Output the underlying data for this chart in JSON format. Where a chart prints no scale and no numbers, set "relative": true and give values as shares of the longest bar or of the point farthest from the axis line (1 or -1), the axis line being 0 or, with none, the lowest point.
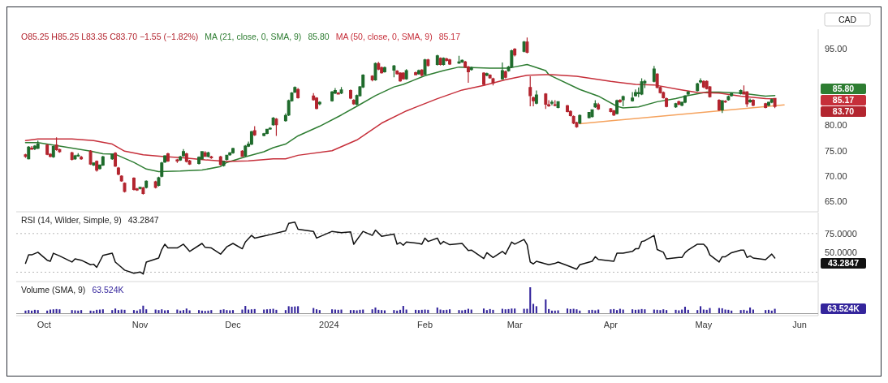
{
  "chart_data": [
    {
      "type": "candlestick",
      "legend": "top left",
      "tick_labels": "y",
      "xlim": [
        "2023-09-22",
        "2024-06-07"
      ],
      "ylim": [
        63.5,
        98.5
      ],
      "yticks": [
        {
          "value": 65,
          "label": "65.00"
        },
        {
          "value": 70,
          "label": "70.00"
        },
        {
          "value": 75,
          "label": "75.00"
        },
        {
          "value": 80,
          "label": "80.00"
        },
        {
          "value": 95,
          "label": "95.00"
        }
      ],
      "annotations": [
        "O85.25 H85.25 L83.35 C83.70 −1.55 (−1.82%)",
        "CAD",
        "85.80",
        "85.17",
        "83.70"
      ],
      "x": [
        "2023-09-25",
        "2023-09-26",
        "2023-09-27",
        "2023-09-28",
        "2023-09-29",
        "2023-10-02",
        "2023-10-03",
        "2023-10-04",
        "2023-10-05",
        "2023-10-06",
        "2023-10-10",
        "2023-10-11",
        "2023-10-12",
        "2023-10-13",
        "2023-10-16",
        "2023-10-17",
        "2023-10-18",
        "2023-10-19",
        "2023-10-20",
        "2023-10-23",
        "2023-10-24",
        "2023-10-25",
        "2023-10-26",
        "2023-10-27",
        "2023-10-30",
        "2023-10-31",
        "2023-11-01",
        "2023-11-02",
        "2023-11-03",
        "2023-11-06",
        "2023-11-07",
        "2023-11-08",
        "2023-11-09",
        "2023-11-10",
        "2023-11-13",
        "2023-11-14",
        "2023-11-15",
        "2023-11-16",
        "2023-11-17",
        "2023-11-20",
        "2023-11-21",
        "2023-11-22",
        "2023-11-23",
        "2023-11-24",
        "2023-11-27",
        "2023-11-28",
        "2023-11-29",
        "2023-11-30",
        "2023-12-01",
        "2023-12-04",
        "2023-12-05",
        "2023-12-06",
        "2023-12-07",
        "2023-12-08",
        "2023-12-11",
        "2023-12-12",
        "2023-12-13",
        "2023-12-14",
        "2023-12-15",
        "2023-12-18",
        "2023-12-19",
        "2023-12-20",
        "2023-12-21",
        "2023-12-22",
        "2023-12-27",
        "2023-12-28",
        "2023-12-29",
        "2024-01-02",
        "2024-01-03",
        "2024-01-04",
        "2024-01-05",
        "2024-01-08",
        "2024-01-09",
        "2024-01-10",
        "2024-01-11",
        "2024-01-12",
        "2024-01-15",
        "2024-01-16",
        "2024-01-17",
        "2024-01-18",
        "2024-01-19",
        "2024-01-22",
        "2024-01-23",
        "2024-01-24",
        "2024-01-25",
        "2024-01-26",
        "2024-01-29",
        "2024-01-30",
        "2024-01-31",
        "2024-02-01",
        "2024-02-02",
        "2024-02-05",
        "2024-02-06",
        "2024-02-07",
        "2024-02-08",
        "2024-02-09",
        "2024-02-12",
        "2024-02-13",
        "2024-02-14",
        "2024-02-15",
        "2024-02-16",
        "2024-02-20",
        "2024-02-21",
        "2024-02-22",
        "2024-02-23",
        "2024-02-26",
        "2024-02-27",
        "2024-02-28",
        "2024-02-29",
        "2024-03-01",
        "2024-03-04",
        "2024-03-05",
        "2024-03-06",
        "2024-03-07",
        "2024-03-08",
        "2024-03-11",
        "2024-03-12",
        "2024-03-13",
        "2024-03-14",
        "2024-03-15",
        "2024-03-18",
        "2024-03-19",
        "2024-03-20",
        "2024-03-21",
        "2024-03-22",
        "2024-03-25",
        "2024-03-26",
        "2024-03-27",
        "2024-03-28",
        "2024-04-01",
        "2024-04-02",
        "2024-04-03",
        "2024-04-04",
        "2024-04-05",
        "2024-04-08",
        "2024-04-09",
        "2024-04-10",
        "2024-04-11",
        "2024-04-12",
        "2024-04-15",
        "2024-04-16",
        "2024-04-17",
        "2024-04-18",
        "2024-04-19",
        "2024-04-22",
        "2024-04-23",
        "2024-04-24",
        "2024-04-25",
        "2024-04-26",
        "2024-04-29",
        "2024-04-30",
        "2024-05-01",
        "2024-05-02",
        "2024-05-03",
        "2024-05-06",
        "2024-05-07",
        "2024-05-08",
        "2024-05-09",
        "2024-05-10",
        "2024-05-13",
        "2024-05-14",
        "2024-05-15",
        "2024-05-16",
        "2024-05-17",
        "2024-05-21",
        "2024-05-22",
        "2024-05-23",
        "2024-05-24"
      ],
      "ohlc": [
        [
          74.2,
          74.4,
          73.6,
          73.9
        ],
        [
          73.4,
          75.9,
          73.3,
          75.7
        ],
        [
          75.5,
          75.9,
          75.2,
          75.3
        ],
        [
          75.4,
          76.1,
          75.1,
          75.9
        ],
        [
          75.5,
          77.0,
          75.3,
          76.3
        ],
        [
          76.1,
          76.3,
          74.1,
          74.3
        ],
        [
          74.3,
          74.5,
          73.7,
          73.9
        ],
        [
          73.8,
          76.0,
          73.6,
          75.8
        ],
        [
          76.1,
          77.6,
          75.0,
          75.2
        ],
        [
          75.2,
          75.4,
          74.6,
          74.8
        ],
        [
          74.6,
          74.8,
          73.1,
          73.3
        ],
        [
          73.4,
          74.2,
          73.2,
          74.0
        ],
        [
          74.1,
          74.5,
          73.8,
          74.1
        ],
        [
          73.7,
          74.0,
          73.2,
          73.4
        ],
        [
          74.9,
          75.1,
          72.2,
          72.4
        ],
        [
          72.2,
          72.7,
          72.0,
          72.6
        ],
        [
          72.9,
          73.1,
          70.9,
          71.2
        ],
        [
          71.5,
          72.3,
          71.3,
          72.2
        ],
        [
          72.2,
          74.0,
          72.0,
          73.8
        ],
        [
          73.4,
          74.4,
          73.2,
          74.3
        ],
        [
          74.5,
          74.7,
          71.8,
          72.0
        ],
        [
          71.6,
          71.8,
          70.2,
          70.4
        ],
        [
          70.0,
          70.2,
          68.9,
          69.1
        ],
        [
          68.6,
          68.8,
          66.8,
          67.0
        ],
        [
          69.6,
          69.8,
          67.2,
          67.4
        ],
        [
          67.5,
          67.7,
          67.1,
          67.3
        ],
        [
          67.6,
          67.9,
          67.4,
          67.8
        ],
        [
          67.7,
          67.9,
          66.4,
          66.6
        ],
        [
          67.8,
          69.2,
          67.6,
          69.0
        ],
        [
          68.9,
          69.1,
          67.6,
          67.8
        ],
        [
          68.2,
          69.9,
          68.0,
          69.7
        ],
        [
          70.0,
          72.8,
          69.8,
          72.6
        ],
        [
          72.8,
          74.1,
          72.6,
          74.0
        ],
        [
          74.4,
          74.6,
          72.8,
          73.0
        ],
        [
          73.2,
          73.4,
          72.6,
          73.0
        ],
        [
          73.2,
          74.0,
          73.0,
          73.8
        ],
        [
          74.0,
          75.3,
          73.8,
          74.8
        ],
        [
          74.4,
          74.6,
          72.7,
          72.9
        ],
        [
          73.0,
          73.2,
          72.2,
          72.4
        ],
        [
          72.5,
          73.9,
          72.3,
          73.7
        ],
        [
          73.4,
          74.9,
          73.2,
          74.8
        ],
        [
          74.6,
          74.9,
          73.8,
          73.9
        ],
        [
          73.9,
          74.8,
          73.7,
          74.6
        ],
        [
          73.8,
          74.0,
          73.4,
          73.6
        ],
        [
          73.8,
          74.0,
          72.1,
          72.3
        ],
        [
          72.1,
          73.0,
          71.9,
          72.9
        ],
        [
          73.3,
          74.2,
          73.1,
          74.1
        ],
        [
          74.2,
          74.7,
          74.0,
          74.6
        ],
        [
          74.6,
          75.6,
          74.4,
          75.4
        ],
        [
          74.9,
          75.1,
          73.8,
          73.9
        ],
        [
          74.0,
          76.1,
          73.8,
          75.9
        ],
        [
          75.9,
          76.8,
          75.7,
          76.3
        ],
        [
          76.3,
          78.9,
          76.1,
          78.7
        ],
        [
          78.9,
          79.8,
          77.9,
          78.1
        ],
        [
          78.0,
          78.5,
          77.8,
          78.3
        ],
        [
          78.4,
          79.3,
          78.2,
          79.2
        ],
        [
          79.3,
          79.6,
          79.1,
          79.4
        ],
        [
          80.1,
          81.6,
          79.9,
          81.4
        ],
        [
          81.2,
          81.4,
          77.9,
          80.1
        ],
        [
          80.9,
          82.3,
          80.7,
          81.9
        ],
        [
          82.0,
          85.0,
          81.8,
          84.8
        ],
        [
          84.8,
          86.5,
          84.6,
          86.3
        ],
        [
          86.5,
          87.6,
          86.3,
          87.4
        ],
        [
          87.0,
          87.3,
          85.2,
          85.4
        ],
        [
          85.7,
          86.3,
          84.8,
          85.0
        ],
        [
          85.3,
          85.5,
          83.1,
          83.3
        ],
        [
          84.2,
          84.7,
          83.9,
          84.5
        ],
        [
          84.8,
          86.7,
          84.6,
          86.5
        ],
        [
          86.3,
          87.3,
          86.1,
          86.8
        ],
        [
          86.3,
          86.5,
          86.0,
          86.1
        ],
        [
          86.3,
          87.5,
          86.1,
          86.9
        ],
        [
          86.8,
          87.0,
          85.1,
          85.3
        ],
        [
          84.9,
          85.1,
          84.0,
          84.2
        ],
        [
          84.1,
          86.0,
          83.9,
          85.8
        ],
        [
          85.8,
          87.7,
          85.6,
          87.5
        ],
        [
          87.5,
          90.0,
          87.3,
          89.8
        ],
        [
          89.6,
          89.8,
          88.6,
          88.9
        ],
        [
          88.9,
          92.3,
          88.7,
          92.1
        ],
        [
          92.1,
          92.4,
          90.8,
          91.0
        ],
        [
          91.3,
          91.5,
          90.1,
          90.3
        ],
        [
          90.5,
          91.5,
          90.3,
          91.3
        ],
        [
          90.8,
          91.8,
          89.4,
          91.6
        ],
        [
          90.6,
          90.8,
          89.9,
          90.1
        ],
        [
          90.2,
          90.4,
          88.5,
          88.7
        ],
        [
          90.2,
          90.4,
          88.9,
          89.1
        ],
        [
          89.1,
          91.0,
          88.9,
          90.7
        ],
        [
          90.3,
          90.5,
          89.8,
          89.9
        ],
        [
          90.1,
          90.9,
          89.9,
          90.7
        ],
        [
          90.8,
          91.0,
          89.6,
          89.8
        ],
        [
          90.0,
          93.0,
          89.8,
          92.8
        ],
        [
          92.8,
          93.0,
          91.5,
          91.7
        ],
        [
          91.9,
          93.8,
          91.7,
          93.6
        ],
        [
          93.1,
          93.3,
          91.7,
          91.9
        ],
        [
          91.9,
          93.3,
          91.7,
          93.1
        ],
        [
          93.0,
          93.2,
          92.5,
          92.7
        ],
        [
          92.8,
          93.0,
          91.8,
          92.0
        ],
        [
          92.2,
          93.6,
          92.0,
          92.4
        ],
        [
          92.4,
          92.9,
          92.2,
          92.7
        ],
        [
          92.4,
          92.6,
          91.2,
          91.4
        ],
        [
          91.4,
          91.6,
          88.3,
          90.5
        ],
        [
          90.9,
          91.5,
          90.7,
          91.3
        ],
        [
          90.2,
          90.4,
          87.8,
          88.0
        ],
        [
          89.8,
          90.3,
          89.6,
          90.1
        ],
        [
          89.8,
          90.0,
          89.1,
          89.3
        ],
        [
          89.1,
          89.3,
          87.8,
          88.3
        ],
        [
          89.1,
          92.3,
          88.9,
          90.7
        ],
        [
          90.5,
          90.7,
          89.2,
          89.4
        ],
        [
          90.7,
          91.6,
          90.5,
          91.4
        ],
        [
          91.4,
          94.8,
          91.2,
          94.6
        ],
        [
          94.9,
          95.1,
          93.5,
          93.8
        ],
        [
          94.5,
          96.5,
          94.3,
          96.3
        ],
        [
          96.3,
          97.2,
          94.1,
          94.3
        ],
        [
          87.4,
          89.6,
          83.7,
          85.8
        ],
        [
          85.4,
          85.6,
          83.7,
          84.8
        ],
        [
          84.3,
          86.8,
          84.1,
          85.9
        ],
        [
          86.1,
          86.3,
          83.2,
          84.1
        ],
        [
          84.0,
          84.9,
          83.6,
          83.8
        ],
        [
          84.3,
          84.9,
          83.9,
          84.5
        ],
        [
          84.0,
          84.9,
          83.7,
          83.9
        ],
        [
          83.5,
          84.7,
          83.3,
          84.6
        ],
        [
          83.8,
          84.0,
          82.5,
          82.7
        ],
        [
          82.7,
          82.9,
          81.7,
          81.9
        ],
        [
          81.7,
          81.9,
          80.2,
          80.4
        ],
        [
          80.5,
          80.7,
          79.5,
          79.7
        ],
        [
          80.4,
          82.1,
          80.2,
          81.9
        ],
        [
          81.5,
          82.6,
          81.3,
          82.5
        ],
        [
          81.7,
          83.1,
          81.5,
          83.0
        ],
        [
          83.6,
          84.9,
          83.4,
          84.2
        ],
        [
          84.0,
          84.4,
          83.0,
          83.2
        ],
        [
          83.2,
          83.4,
          82.5,
          82.7
        ],
        [
          82.8,
          83.0,
          81.8,
          82.0
        ],
        [
          82.3,
          85.0,
          82.1,
          84.8
        ],
        [
          84.9,
          85.1,
          84.4,
          84.6
        ],
        [
          85.0,
          85.8,
          83.7,
          85.6
        ],
        [
          84.8,
          86.5,
          84.6,
          85.3
        ],
        [
          85.8,
          87.0,
          85.6,
          86.4
        ],
        [
          86.2,
          87.4,
          85.5,
          86.4
        ],
        [
          86.1,
          89.2,
          85.9,
          88.5
        ],
        [
          88.3,
          88.9,
          87.3,
          88.6
        ],
        [
          88.6,
          91.6,
          88.4,
          91.0
        ],
        [
          90.0,
          90.2,
          87.2,
          87.4
        ],
        [
          87.4,
          87.6,
          86.2,
          86.4
        ],
        [
          86.4,
          86.6,
          85.2,
          85.4
        ],
        [
          85.2,
          85.4,
          83.5,
          83.7
        ],
        [
          83.6,
          84.4,
          83.4,
          84.2
        ],
        [
          84.6,
          84.8,
          83.9,
          84.1
        ],
        [
          83.9,
          84.6,
          83.7,
          84.5
        ],
        [
          84.5,
          85.9,
          84.3,
          85.7
        ],
        [
          86.1,
          86.7,
          85.9,
          86.5
        ],
        [
          86.8,
          88.3,
          86.6,
          88.1
        ],
        [
          88.5,
          89.2,
          88.2,
          88.7
        ],
        [
          88.6,
          88.8,
          87.3,
          87.5
        ],
        [
          88.6,
          88.8,
          87.0,
          87.2
        ],
        [
          87.5,
          87.7,
          85.4,
          85.6
        ],
        [
          84.9,
          85.1,
          82.8,
          83.0
        ],
        [
          83.0,
          84.9,
          82.4,
          84.8
        ],
        [
          84.7,
          84.9,
          84.4,
          84.6
        ],
        [
          85.0,
          85.8,
          84.8,
          85.6
        ],
        [
          85.8,
          86.4,
          85.6,
          86.2
        ],
        [
          86.2,
          87.0,
          86.0,
          86.8
        ],
        [
          86.5,
          87.8,
          86.0,
          86.1
        ],
        [
          86.5,
          86.7,
          83.6,
          84.2
        ],
        [
          84.6,
          85.2,
          84.4,
          84.9
        ],
        [
          84.9,
          85.1,
          83.7,
          83.9
        ],
        [
          84.2,
          84.4,
          83.3,
          83.5
        ],
        [
          83.9,
          84.6,
          83.7,
          84.5
        ],
        [
          84.5,
          85.2,
          84.3,
          85.0
        ],
        [
          85.25,
          85.25,
          83.35,
          83.7
        ]
      ],
      "series": [
        {
          "type": "line",
          "name": "MA (21, close, 0, SMA, 9)",
          "color": "#2e7d32",
          "x": [
            "2023-09-25",
            "2023-09-29",
            "2023-10-06",
            "2023-10-16",
            "2023-10-20",
            "2023-10-24",
            "2023-10-30",
            "2023-11-03",
            "2023-11-07",
            "2023-11-14",
            "2023-11-21",
            "2023-11-27",
            "2023-11-29",
            "2023-12-05",
            "2023-12-11",
            "2023-12-14",
            "2023-12-18",
            "2023-12-22",
            "2023-12-29",
            "2024-01-05",
            "2024-01-10",
            "2024-01-16",
            "2024-01-22",
            "2024-01-25",
            "2024-02-01",
            "2024-02-07",
            "2024-02-12",
            "2024-02-16",
            "2024-02-22",
            "2024-02-28",
            "2024-03-05",
            "2024-03-11",
            "2024-03-12",
            "2024-03-22",
            "2024-03-28",
            "2024-04-03",
            "2024-04-05",
            "2024-04-10",
            "2024-04-16",
            "2024-04-22",
            "2024-04-26",
            "2024-05-02",
            "2024-05-06",
            "2024-05-13",
            "2024-05-21",
            "2024-05-24"
          ],
          "values": [
            76.6,
            76.6,
            75.9,
            74.9,
            74.4,
            74.3,
            72.7,
            71.4,
            70.9,
            71.0,
            71.2,
            71.9,
            72.7,
            73.8,
            74.8,
            75.6,
            76.3,
            77.9,
            79.8,
            82.0,
            83.7,
            85.8,
            87.5,
            88.0,
            89.7,
            90.7,
            91.4,
            91.3,
            91.2,
            91.2,
            91.9,
            90.7,
            89.9,
            87.0,
            85.7,
            83.7,
            83.4,
            83.6,
            84.6,
            85.2,
            85.8,
            86.5,
            86.5,
            86.3,
            85.7,
            85.8
          ]
        },
        {
          "type": "line",
          "name": "MA (50, close, 0, SMA, 9)",
          "color": "#c62f3a",
          "x": [
            "2023-09-25",
            "2023-09-29",
            "2023-10-10",
            "2023-10-17",
            "2023-10-23",
            "2023-10-27",
            "2023-11-02",
            "2023-11-08",
            "2023-11-15",
            "2023-11-22",
            "2023-11-29",
            "2023-12-06",
            "2023-12-14",
            "2023-12-18",
            "2023-12-22",
            "2024-01-02",
            "2024-01-10",
            "2024-01-18",
            "2024-01-26",
            "2024-02-05",
            "2024-02-13",
            "2024-02-20",
            "2024-02-27",
            "2024-03-05",
            "2024-03-11",
            "2024-03-13",
            "2024-03-21",
            "2024-04-01",
            "2024-04-09",
            "2024-04-15",
            "2024-04-23",
            "2024-04-29",
            "2024-05-06",
            "2024-05-13",
            "2024-05-21",
            "2024-05-24"
          ],
          "values": [
            77.0,
            77.3,
            77.3,
            77.0,
            76.3,
            74.9,
            74.2,
            73.9,
            73.6,
            73.2,
            72.9,
            73.0,
            73.4,
            73.4,
            74.1,
            75.0,
            77.1,
            80.4,
            82.8,
            85.2,
            86.9,
            87.8,
            88.9,
            89.8,
            89.9,
            89.9,
            89.6,
            88.6,
            88.0,
            87.9,
            87.0,
            86.4,
            86.3,
            85.7,
            85.2,
            85.17
          ]
        },
        {
          "type": "line",
          "color": "#f5a25d",
          "x": [
            "2024-03-22",
            "2024-05-27"
          ],
          "values": [
            80.3,
            84.0
          ]
        }
      ]
    },
    {
      "type": "line",
      "title": "RSI (14, Wilder, Simple, 9)",
      "tick_labels": "y",
      "xlim": [
        "2023-09-22",
        "2024-06-07"
      ],
      "ylim": [
        16,
        100
      ],
      "yticks": [
        {
          "value": 75,
          "label": "75.0000"
        },
        {
          "value": 50,
          "label": "50.0000"
        }
      ],
      "ref_lines": [
        {
          "axis": "y",
          "value": 75,
          "color": "#b8b8b8",
          "line_style": "dotted"
        },
        {
          "axis": "y",
          "value": 25,
          "color": "#b8b8b8",
          "line_style": "dotted"
        }
      ],
      "annotations": [
        "43.2847"
      ],
      "series": [
        {
          "color": "#111111",
          "x": [
            "2023-09-25",
            "2023-09-26",
            "2023-09-27",
            "2023-09-29",
            "2023-10-02",
            "2023-10-03",
            "2023-10-04",
            "2023-10-06",
            "2023-10-10",
            "2023-10-11",
            "2023-10-13",
            "2023-10-16",
            "2023-10-17",
            "2023-10-18",
            "2023-10-20",
            "2023-10-23",
            "2023-10-24",
            "2023-10-26",
            "2023-10-27",
            "2023-10-30",
            "2023-11-01",
            "2023-11-02",
            "2023-11-03",
            "2023-11-07",
            "2023-11-08",
            "2023-11-09",
            "2023-11-10",
            "2023-11-13",
            "2023-11-15",
            "2023-11-17",
            "2023-11-21",
            "2023-11-22",
            "2023-11-24",
            "2023-11-27",
            "2023-11-29",
            "2023-12-01",
            "2023-12-04",
            "2023-12-05",
            "2023-12-07",
            "2023-12-08",
            "2023-12-12",
            "2023-12-13",
            "2023-12-18",
            "2023-12-19",
            "2023-12-21",
            "2023-12-22",
            "2023-12-27",
            "2023-12-28",
            "2024-01-02",
            "2024-01-05",
            "2024-01-08",
            "2024-01-09",
            "2024-01-12",
            "2024-01-15",
            "2024-01-16",
            "2024-01-18",
            "2024-01-22",
            "2024-01-23",
            "2024-01-24",
            "2024-01-25",
            "2024-01-26",
            "2024-01-30",
            "2024-01-31",
            "2024-02-01",
            "2024-02-02",
            "2024-02-05",
            "2024-02-06",
            "2024-02-07",
            "2024-02-09",
            "2024-02-13",
            "2024-02-15",
            "2024-02-16",
            "2024-02-20",
            "2024-02-21",
            "2024-02-23",
            "2024-02-26",
            "2024-02-27",
            "2024-02-29",
            "2024-03-01",
            "2024-03-04",
            "2024-03-05",
            "2024-03-06",
            "2024-03-07",
            "2024-03-08",
            "2024-03-12",
            "2024-03-14",
            "2024-03-15",
            "2024-03-18",
            "2024-03-21",
            "2024-03-22",
            "2024-03-26",
            "2024-03-27",
            "2024-03-28",
            "2024-04-02",
            "2024-04-03",
            "2024-04-05",
            "2024-04-08",
            "2024-04-09",
            "2024-04-10",
            "2024-04-11",
            "2024-04-12",
            "2024-04-15",
            "2024-04-16",
            "2024-04-18",
            "2024-04-19",
            "2024-04-23",
            "2024-04-24",
            "2024-04-25",
            "2024-04-26",
            "2024-04-29",
            "2024-05-01",
            "2024-05-02",
            "2024-05-03",
            "2024-05-06",
            "2024-05-07",
            "2024-05-08",
            "2024-05-10",
            "2024-05-13",
            "2024-05-14",
            "2024-05-15",
            "2024-05-16",
            "2024-05-17",
            "2024-05-21",
            "2024-05-23",
            "2024-05-24"
          ],
          "values": [
            36.4,
            47.4,
            47.4,
            50.8,
            40.5,
            39.1,
            49.5,
            46.0,
            38.1,
            42.2,
            40.5,
            34.6,
            35.3,
            31.2,
            46.7,
            49.5,
            38.1,
            31.2,
            27.7,
            23.6,
            25.3,
            22.6,
            38.1,
            43.3,
            54.3,
            61.2,
            56.4,
            56.4,
            61.2,
            51.9,
            62.2,
            57.1,
            56.4,
            48.4,
            57.8,
            62.2,
            55.3,
            64.0,
            72.6,
            69.1,
            72.6,
            73.6,
            78.5,
            88.1,
            89.8,
            80.5,
            77.8,
            69.1,
            77.8,
            76.0,
            77.1,
            61.2,
            77.8,
            72.6,
            79.5,
            71.5,
            74.3,
            61.2,
            63.3,
            59.8,
            64.0,
            62.2,
            61.2,
            69.1,
            64.7,
            69.1,
            61.2,
            64.7,
            60.5,
            62.2,
            52.9,
            53.6,
            42.6,
            50.2,
            44.0,
            51.9,
            48.4,
            64.0,
            61.2,
            67.4,
            60.5,
            38.1,
            35.7,
            39.1,
            34.6,
            36.4,
            38.1,
            33.6,
            28.8,
            34.6,
            39.1,
            45.0,
            41.5,
            39.1,
            49.5,
            49.5,
            51.9,
            55.3,
            55.3,
            64.7,
            65.7,
            72.6,
            54.3,
            50.8,
            42.2,
            44.0,
            44.0,
            50.2,
            53.6,
            61.2,
            61.2,
            57.1,
            47.4,
            38.1,
            45.0,
            45.0,
            50.2,
            53.6,
            53.6,
            44.0,
            46.0,
            43.3,
            41.2,
            48.4,
            43.2847
          ]
        }
      ]
    },
    {
      "type": "bar",
      "title": "Volume (SMA, 9)",
      "relative": true,
      "tick_labels": "x",
      "color": "#34259c",
      "xlim": [
        "2023-09-22",
        "2024-06-07"
      ],
      "xticks": [
        {
          "value": "2023-10-01",
          "label": "Oct"
        },
        {
          "value": "2023-11-01",
          "label": "Nov"
        },
        {
          "value": "2023-12-01",
          "label": "Dec"
        },
        {
          "value": "2024-01-01",
          "label": "2024"
        },
        {
          "value": "2024-02-01",
          "label": "Feb"
        },
        {
          "value": "2024-03-01",
          "label": "Mar"
        },
        {
          "value": "2024-04-01",
          "label": "Apr"
        },
        {
          "value": "2024-05-01",
          "label": "May"
        },
        {
          "value": "2024-06-01",
          "label": "Jun"
        }
      ],
      "annotations": [
        "63.524K"
      ],
      "x": [
        "2023-09-25",
        "2023-09-26",
        "2023-09-27",
        "2023-09-28",
        "2023-09-29",
        "2023-10-02",
        "2023-10-03",
        "2023-10-04",
        "2023-10-05",
        "2023-10-06",
        "2023-10-10",
        "2023-10-11",
        "2023-10-12",
        "2023-10-13",
        "2023-10-16",
        "2023-10-17",
        "2023-10-18",
        "2023-10-19",
        "2023-10-20",
        "2023-10-23",
        "2023-10-24",
        "2023-10-25",
        "2023-10-26",
        "2023-10-27",
        "2023-10-30",
        "2023-10-31",
        "2023-11-01",
        "2023-11-02",
        "2023-11-03",
        "2023-11-06",
        "2023-11-07",
        "2023-11-08",
        "2023-11-09",
        "2023-11-10",
        "2023-11-13",
        "2023-11-14",
        "2023-11-15",
        "2023-11-16",
        "2023-11-17",
        "2023-11-20",
        "2023-11-21",
        "2023-11-22",
        "2023-11-23",
        "2023-11-24",
        "2023-11-27",
        "2023-11-28",
        "2023-11-29",
        "2023-11-30",
        "2023-12-01",
        "2023-12-04",
        "2023-12-05",
        "2023-12-06",
        "2023-12-07",
        "2023-12-08",
        "2023-12-11",
        "2023-12-12",
        "2023-12-13",
        "2023-12-14",
        "2023-12-15",
        "2023-12-18",
        "2023-12-19",
        "2023-12-20",
        "2023-12-21",
        "2023-12-22",
        "2023-12-27",
        "2023-12-28",
        "2023-12-29",
        "2024-01-02",
        "2024-01-03",
        "2024-01-04",
        "2024-01-05",
        "2024-01-08",
        "2024-01-09",
        "2024-01-10",
        "2024-01-11",
        "2024-01-12",
        "2024-01-15",
        "2024-01-16",
        "2024-01-17",
        "2024-01-18",
        "2024-01-19",
        "2024-01-22",
        "2024-01-23",
        "2024-01-24",
        "2024-01-25",
        "2024-01-26",
        "2024-01-29",
        "2024-01-30",
        "2024-01-31",
        "2024-02-01",
        "2024-02-02",
        "2024-02-05",
        "2024-02-06",
        "2024-02-07",
        "2024-02-08",
        "2024-02-09",
        "2024-02-12",
        "2024-02-13",
        "2024-02-14",
        "2024-02-15",
        "2024-02-16",
        "2024-02-20",
        "2024-02-21",
        "2024-02-22",
        "2024-02-23",
        "2024-02-26",
        "2024-02-27",
        "2024-02-28",
        "2024-02-29",
        "2024-03-01",
        "2024-03-04",
        "2024-03-05",
        "2024-03-06",
        "2024-03-07",
        "2024-03-08",
        "2024-03-11",
        "2024-03-12",
        "2024-03-13",
        "2024-03-14",
        "2024-03-15",
        "2024-03-18",
        "2024-03-19",
        "2024-03-20",
        "2024-03-21",
        "2024-03-22",
        "2024-03-25",
        "2024-03-26",
        "2024-03-27",
        "2024-03-28",
        "2024-04-01",
        "2024-04-02",
        "2024-04-03",
        "2024-04-04",
        "2024-04-05",
        "2024-04-08",
        "2024-04-09",
        "2024-04-10",
        "2024-04-11",
        "2024-04-12",
        "2024-04-15",
        "2024-04-16",
        "2024-04-17",
        "2024-04-18",
        "2024-04-19",
        "2024-04-22",
        "2024-04-23",
        "2024-04-24",
        "2024-04-25",
        "2024-04-26",
        "2024-04-29",
        "2024-04-30",
        "2024-05-01",
        "2024-05-02",
        "2024-05-03",
        "2024-05-06",
        "2024-05-07",
        "2024-05-08",
        "2024-05-09",
        "2024-05-10",
        "2024-05-13",
        "2024-05-14",
        "2024-05-15",
        "2024-05-16",
        "2024-05-17",
        "2024-05-21",
        "2024-05-22",
        "2024-05-23",
        "2024-05-24"
      ],
      "values": [
        0.1,
        0.12,
        0.1,
        0.13,
        0.12,
        0.1,
        0.14,
        0.15,
        0.16,
        0.15,
        0.12,
        0.11,
        0.1,
        0.12,
        0.1,
        0.09,
        0.13,
        0.14,
        0.15,
        0.12,
        0.18,
        0.12,
        0.14,
        0.13,
        0.12,
        0.1,
        0.15,
        0.29,
        0.15,
        0.14,
        0.12,
        0.15,
        0.11,
        0.12,
        0.14,
        0.1,
        0.12,
        0.18,
        0.11,
        0.12,
        0.1,
        0.09,
        0.1,
        0.12,
        0.13,
        0.15,
        0.12,
        0.11,
        0.12,
        0.14,
        0.28,
        0.14,
        0.15,
        0.16,
        0.14,
        0.15,
        0.16,
        0.17,
        0.13,
        0.12,
        0.27,
        0.25,
        0.26,
        0.27,
        0.2,
        0.15,
        0.12,
        0.15,
        0.14,
        0.13,
        0.14,
        0.12,
        0.12,
        0.11,
        0.13,
        0.14,
        0.15,
        0.22,
        0.13,
        0.12,
        0.11,
        0.12,
        0.1,
        0.13,
        0.28,
        0.14,
        0.13,
        0.12,
        0.13,
        0.14,
        0.13,
        0.22,
        0.14,
        0.12,
        0.13,
        0.15,
        0.12,
        0.11,
        0.13,
        0.17,
        0.14,
        0.18,
        0.12,
        0.16,
        0.13,
        0.17,
        0.15,
        0.16,
        0.18,
        0.18,
        0.17,
        0.17,
        1,
        0.36,
        0.27,
        0.53,
        0.16,
        0.1,
        0.1,
        0.11,
        0.18,
        0.16,
        0.17,
        0.15,
        0.1,
        0.12,
        0.13,
        0.11,
        0.14,
        0.15,
        0.16,
        0.12,
        0.17,
        0.14,
        0.15,
        0.13,
        0.14,
        0.16,
        0.15,
        0.14,
        0.13,
        0.12,
        0.15,
        0.12,
        0.13,
        0.11,
        0.14,
        0.25,
        0.13,
        0.12,
        0.27,
        0.14,
        0.13,
        0.2,
        0.2,
        0.19,
        0.14,
        0.13,
        0.1,
        0.12,
        0.13,
        0.1,
        0.22,
        0.14,
        0.12,
        0.13,
        0.1,
        0.17
      ]
    }
  ]
}
